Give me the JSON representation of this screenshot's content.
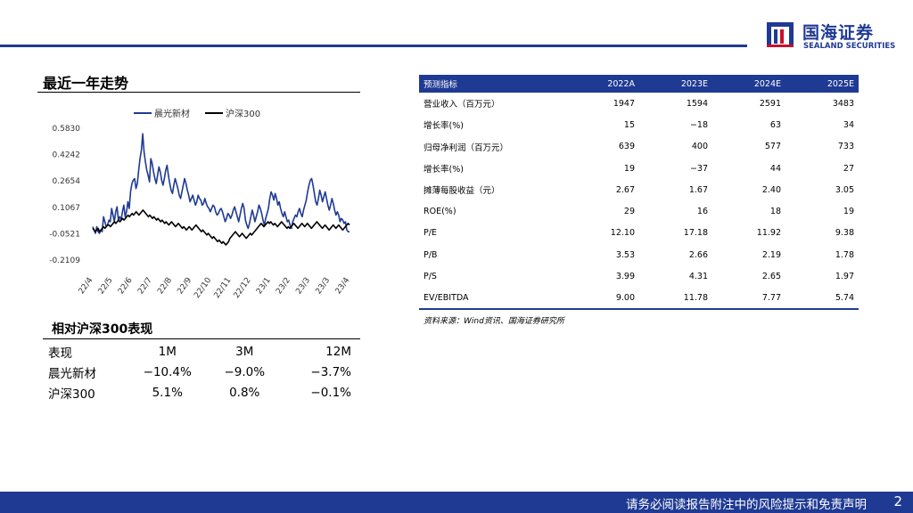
{
  "brand": {
    "name_cn": "国海证券",
    "name_en": "SEALAND SECURITIES",
    "color": "#1f3a93"
  },
  "trend": {
    "title": "最近一年走势",
    "chart_data": {
      "type": "line",
      "legend_position": "top",
      "series": [
        {
          "name": "晨光新材",
          "color": "#1f3a93",
          "values": [
            -0.01,
            -0.03,
            -0.05,
            -0.01,
            -0.04,
            -0.05,
            -0.03,
            -0.04,
            0.05,
            0.02,
            -0.01,
            0.0,
            0.03,
            0.02,
            0.1,
            0.06,
            0.02,
            0.08,
            0.11,
            0.03,
            0.05,
            0.03,
            0.08,
            0.12,
            0.05,
            0.08,
            0.14,
            0.1,
            0.2,
            0.25,
            0.27,
            0.28,
            0.22,
            0.25,
            0.33,
            0.4,
            0.45,
            0.55,
            0.44,
            0.38,
            0.33,
            0.3,
            0.26,
            0.4,
            0.37,
            0.32,
            0.28,
            0.25,
            0.3,
            0.35,
            0.32,
            0.27,
            0.24,
            0.28,
            0.33,
            0.36,
            0.3,
            0.25,
            0.21,
            0.19,
            0.24,
            0.28,
            0.25,
            0.22,
            0.18,
            0.16,
            0.2,
            0.24,
            0.28,
            0.25,
            0.21,
            0.18,
            0.14,
            0.16,
            0.18,
            0.15,
            0.12,
            0.14,
            0.18,
            0.16,
            0.15,
            0.12,
            0.13,
            0.16,
            0.13,
            0.11,
            0.1,
            0.08,
            0.1,
            0.12,
            0.11,
            0.08,
            0.06,
            0.07,
            0.09,
            0.1,
            0.08,
            0.05,
            0.02,
            0.04,
            0.07,
            0.06,
            0.04,
            0.06,
            0.09,
            0.11,
            0.08,
            0.05,
            0.02,
            0.06,
            0.1,
            0.13,
            0.1,
            0.03,
            0.0,
            -0.02,
            0.01,
            0.05,
            0.09,
            0.06,
            0.02,
            0.05,
            0.08,
            0.12,
            0.1,
            0.07,
            0.03,
            0.0,
            0.04,
            0.07,
            0.1,
            0.16,
            0.2,
            0.18,
            0.15,
            0.19,
            0.16,
            0.12,
            0.14,
            0.1,
            0.07,
            0.05,
            0.08,
            0.05,
            0.02,
            0.03,
            0.0,
            -0.02,
            0.02,
            0.04,
            0.06,
            0.05,
            0.08,
            0.1,
            0.07,
            0.05,
            0.09,
            0.12,
            0.15,
            0.2,
            0.24,
            0.27,
            0.28,
            0.24,
            0.19,
            0.14,
            0.12,
            0.16,
            0.21,
            0.18,
            0.14,
            0.17,
            0.2,
            0.16,
            0.12,
            0.09,
            0.12,
            0.16,
            0.13,
            0.09,
            0.06,
            0.08,
            0.06,
            0.02,
            0.04,
            0.03,
            0.01,
            0.02,
            -0.03,
            -0.04,
            -0.04
          ]
        },
        {
          "name": "沪深300",
          "color": "#000000",
          "values": [
            -0.02,
            -0.03,
            -0.04,
            -0.03,
            -0.02,
            -0.04,
            -0.03,
            -0.02,
            -0.01,
            -0.02,
            -0.01,
            0.0,
            0.0,
            -0.01,
            0.0,
            0.01,
            0.02,
            0.01,
            0.02,
            0.03,
            0.02,
            0.03,
            0.04,
            0.03,
            0.04,
            0.05,
            0.06,
            0.05,
            0.06,
            0.07,
            0.06,
            0.07,
            0.08,
            0.07,
            0.06,
            0.07,
            0.08,
            0.09,
            0.08,
            0.07,
            0.06,
            0.05,
            0.06,
            0.05,
            0.04,
            0.05,
            0.04,
            0.03,
            0.04,
            0.03,
            0.02,
            0.03,
            0.02,
            0.01,
            0.02,
            0.01,
            0.0,
            0.01,
            0.02,
            0.01,
            0.0,
            -0.01,
            0.0,
            0.01,
            0.0,
            -0.01,
            -0.02,
            -0.01,
            -0.02,
            -0.03,
            -0.02,
            -0.01,
            -0.02,
            -0.03,
            -0.02,
            -0.01,
            0.0,
            -0.01,
            -0.02,
            -0.03,
            -0.04,
            -0.03,
            -0.04,
            -0.05,
            -0.06,
            -0.05,
            -0.06,
            -0.07,
            -0.08,
            -0.07,
            -0.08,
            -0.09,
            -0.1,
            -0.09,
            -0.1,
            -0.11,
            -0.1,
            -0.11,
            -0.12,
            -0.11,
            -0.1,
            -0.08,
            -0.07,
            -0.06,
            -0.05,
            -0.04,
            -0.05,
            -0.06,
            -0.07,
            -0.06,
            -0.05,
            -0.06,
            -0.07,
            -0.08,
            -0.07,
            -0.06,
            -0.05,
            -0.06,
            -0.05,
            -0.04,
            -0.03,
            -0.02,
            -0.01,
            0.0,
            0.01,
            0.0,
            -0.01,
            0.0,
            0.01,
            0.02,
            0.01,
            0.02,
            0.01,
            0.0,
            0.01,
            0.0,
            -0.01,
            0.0,
            0.01,
            0.02,
            0.01,
            0.0,
            -0.01,
            -0.02,
            -0.01,
            -0.02,
            -0.01,
            0.0,
            0.01,
            0.0,
            -0.01,
            -0.02,
            -0.01,
            0.0,
            0.01,
            0.0,
            -0.01,
            0.0,
            0.01,
            0.0,
            -0.01,
            -0.02,
            -0.01,
            0.0,
            0.01,
            0.02,
            0.01,
            0.0,
            -0.01,
            -0.02,
            -0.01,
            0.0,
            -0.01,
            -0.02,
            -0.03,
            -0.02,
            -0.01,
            0.0,
            -0.01,
            -0.02,
            -0.01,
            0.0,
            -0.01,
            -0.02,
            -0.03,
            -0.02,
            -0.01,
            0.0,
            0.01,
            0.0
          ]
        }
      ],
      "x_labels": [
        "22/4",
        "22/5",
        "22/6",
        "22/7",
        "22/8",
        "22/9",
        "22/10",
        "22/11",
        "22/12",
        "23/1",
        "23/2",
        "23/3",
        "23/3",
        "23/4"
      ],
      "y_ticks": [
        "0.5830",
        "0.4242",
        "0.2654",
        "0.1067",
        "-0.0521",
        "-0.2109"
      ],
      "ylim": [
        -0.2109,
        0.583
      ],
      "grid": false
    }
  },
  "relative": {
    "title": "相对沪深300表现",
    "header": [
      "表现",
      "1M",
      "3M",
      "12M"
    ],
    "rows": [
      [
        "晨光新材",
        "−10.4%",
        "−9.0%",
        "−3.7%"
      ],
      [
        "沪深300",
        "5.1%",
        "0.8%",
        "−0.1%"
      ]
    ]
  },
  "forecast": {
    "header": [
      "预测指标",
      "2022A",
      "2023E",
      "2024E",
      "2025E"
    ],
    "rows": [
      [
        "营业收入（百万元）",
        "1947",
        "1594",
        "2591",
        "3483"
      ],
      [
        "增长率(%)",
        "15",
        "−18",
        "63",
        "34"
      ],
      [
        "归母净利润（百万元）",
        "639",
        "400",
        "577",
        "733"
      ],
      [
        "增长率(%)",
        "19",
        "−37",
        "44",
        "27"
      ],
      [
        "摊薄每股收益（元）",
        "2.67",
        "1.67",
        "2.40",
        "3.05"
      ],
      [
        "ROE(%)",
        "29",
        "16",
        "18",
        "19"
      ],
      [
        "P/E",
        "12.10",
        "17.18",
        "11.92",
        "9.38"
      ],
      [
        "P/B",
        "3.53",
        "2.66",
        "2.19",
        "1.78"
      ],
      [
        "P/S",
        "3.99",
        "4.31",
        "2.65",
        "1.97"
      ],
      [
        "EV/EBITDA",
        "9.00",
        "11.78",
        "7.77",
        "5.74"
      ]
    ],
    "source": "资料来源：Wind资讯、国海证券研究所"
  },
  "footer": {
    "disclaimer": "请务必阅读报告附注中的风险提示和免责声明",
    "page": "2"
  }
}
